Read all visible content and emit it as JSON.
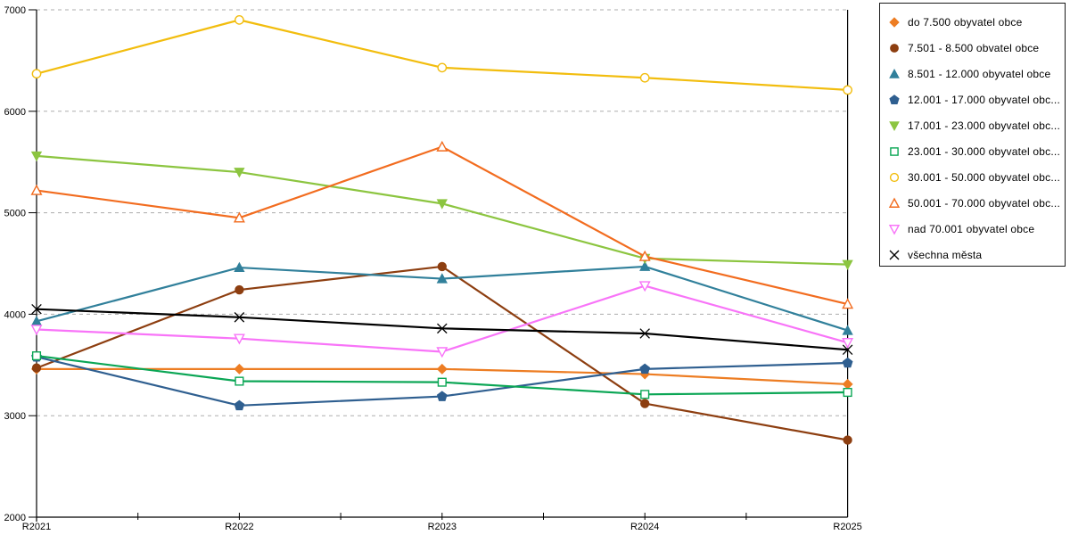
{
  "chart_data": {
    "type": "line",
    "title": "",
    "xlabel": "",
    "ylabel": "",
    "categories": [
      "R2021",
      "R2022",
      "R2023",
      "R2024",
      "R2025"
    ],
    "ylim": [
      2000,
      7000
    ],
    "ytick_step": 1000,
    "yticks": [
      2000,
      3000,
      4000,
      5000,
      6000,
      7000
    ],
    "grid": "horizontal-dashed",
    "grid_color": "#adadad",
    "axis_color": "#000000",
    "background": "#ffffff",
    "legend_position": "right",
    "series": [
      {
        "name": "do 7.500 obyvatel obce",
        "marker": "diamond",
        "filled": true,
        "color": "#ed7d23",
        "values": [
          3460,
          3460,
          3460,
          3410,
          3310
        ]
      },
      {
        "name": "7.501 - 8.500 obvatel obce",
        "marker": "circle",
        "filled": true,
        "color": "#8d3e10",
        "values": [
          3470,
          4240,
          4470,
          3120,
          2760
        ]
      },
      {
        "name": "8.501 - 12.000 obyvatel obce",
        "marker": "triangle-up",
        "filled": true,
        "color": "#31809b",
        "values": [
          3930,
          4460,
          4350,
          4470,
          3840
        ]
      },
      {
        "name": "12.001 - 17.000 obyvatel obc...",
        "marker": "pentagon",
        "filled": true,
        "color": "#2f5f90",
        "values": [
          3580,
          3100,
          3190,
          3460,
          3520
        ]
      },
      {
        "name": "17.001 - 23.000 obyvatel obc...",
        "marker": "triangle-down",
        "filled": true,
        "color": "#8cc540",
        "values": [
          5560,
          5400,
          5090,
          4550,
          4490
        ]
      },
      {
        "name": "23.001 - 30.000 obyvatel obc...",
        "marker": "square",
        "filled": false,
        "color": "#0ba655",
        "values": [
          3590,
          3340,
          3330,
          3210,
          3230
        ]
      },
      {
        "name": "30.001 - 50.000 obyvatel obc...",
        "marker": "circle",
        "filled": false,
        "color": "#f2bd0e",
        "values": [
          6370,
          6900,
          6430,
          6330,
          6210
        ]
      },
      {
        "name": "50.001 - 70.000 obyvatel obc...",
        "marker": "triangle-up",
        "filled": false,
        "color": "#f26c1f",
        "values": [
          5220,
          4950,
          5650,
          4570,
          4100
        ]
      },
      {
        "name": "nad 70.001 obyvatel obce",
        "marker": "triangle-down",
        "filled": false,
        "color": "#f874f8",
        "values": [
          3850,
          3760,
          3630,
          4280,
          3720
        ]
      },
      {
        "name": "všechna města",
        "marker": "x",
        "filled": false,
        "color": "#000000",
        "values": [
          4050,
          3970,
          3860,
          3810,
          3650
        ]
      }
    ]
  }
}
